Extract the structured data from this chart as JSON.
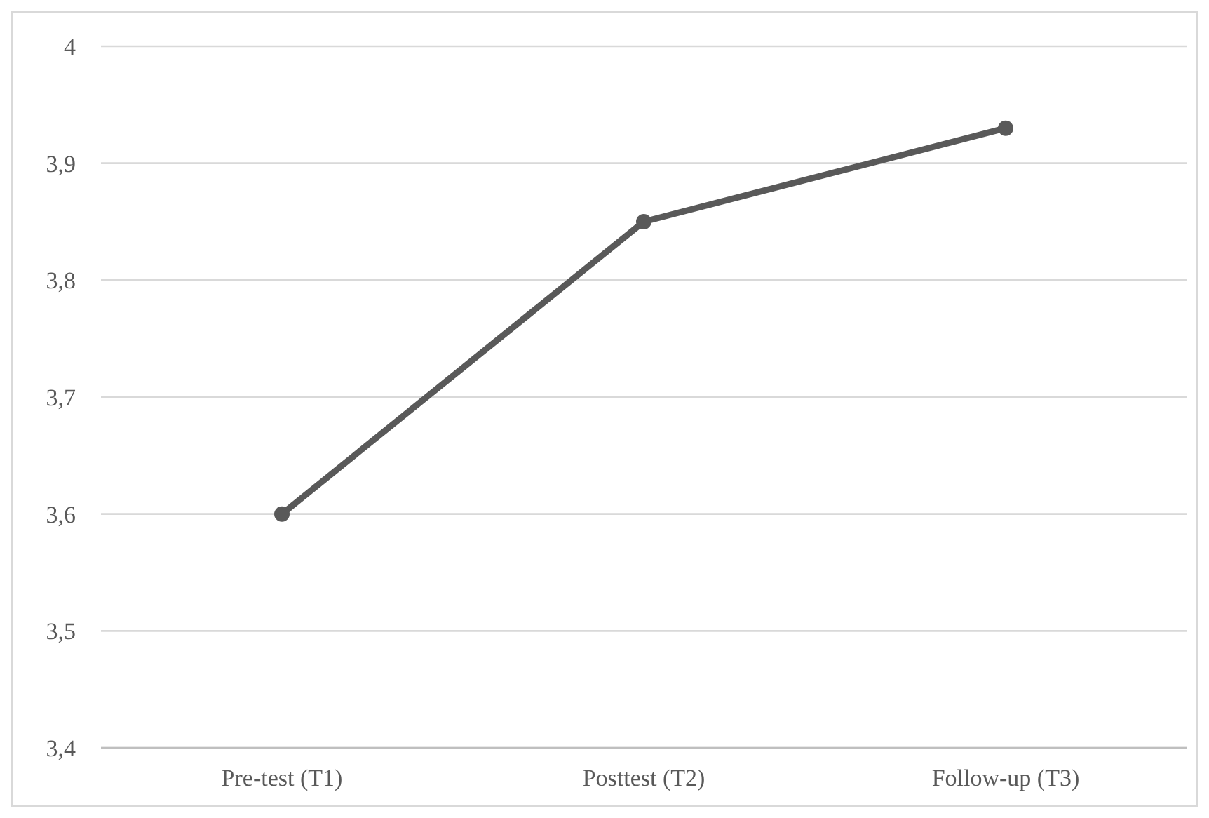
{
  "chart_data": {
    "type": "line",
    "categories": [
      "Pre-test (T1)",
      "Posttest (T2)",
      "Follow-up (T3)"
    ],
    "series": [
      {
        "color": "#595959",
        "values": [
          3.6,
          3.85,
          3.93
        ]
      }
    ],
    "ylim": [
      3.4,
      4
    ],
    "yticks": [
      {
        "value": 3.4,
        "label": "3,4"
      },
      {
        "value": 3.5,
        "label": "3,5"
      },
      {
        "value": 3.6,
        "label": "3,6"
      },
      {
        "value": 3.7,
        "label": "3,7"
      },
      {
        "value": 3.8,
        "label": "3,8"
      },
      {
        "value": 3.9,
        "label": "3,9"
      },
      {
        "value": 4,
        "label": "4"
      }
    ],
    "grid": "y",
    "marker": "circle",
    "line_style": "solid"
  }
}
